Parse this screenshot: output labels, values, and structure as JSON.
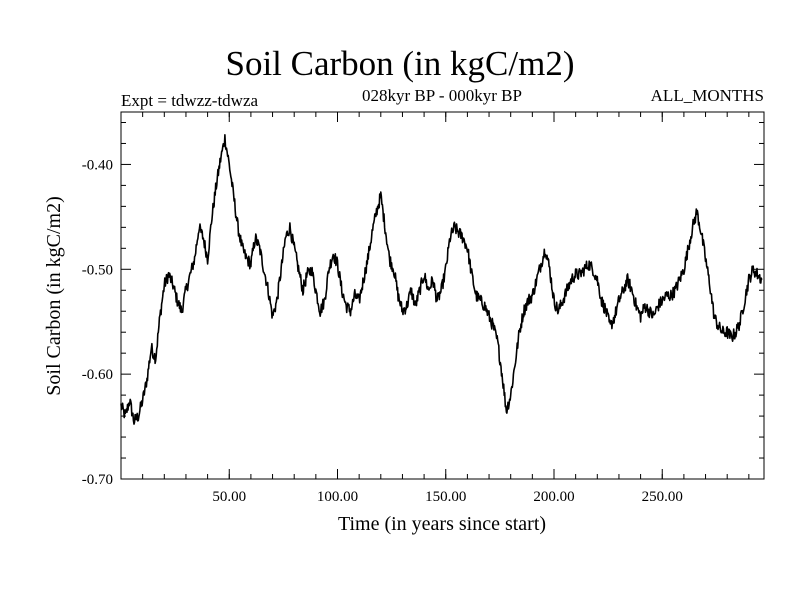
{
  "header": {
    "title": "Soil Carbon (in kgC/m2)",
    "experiment": "Expt = tdwzz-tdwza",
    "period": "028kyr BP - 000kyr BP",
    "months": "ALL_MONTHS"
  },
  "chart_data": {
    "type": "line",
    "title": "Soil Carbon (in kgC/m2)",
    "xlabel": "Time (in years since start)",
    "ylabel": "Soil Carbon (in kgC/m2)",
    "xlim": [
      0,
      297
    ],
    "ylim": [
      -0.7,
      -0.35
    ],
    "x_ticks": [
      50,
      100,
      150,
      200,
      250
    ],
    "x_tick_labels": [
      "50.00",
      "100.00",
      "150.00",
      "200.00",
      "250.00"
    ],
    "y_ticks": [
      -0.7,
      -0.6,
      -0.5,
      -0.4
    ],
    "y_tick_labels": [
      "-0.70",
      "-0.60",
      "-0.50",
      "-0.40"
    ],
    "grid": false,
    "series": [
      {
        "color": "#000000",
        "x": [
          0,
          2,
          4,
          6,
          8,
          10,
          12,
          14,
          16,
          18,
          20,
          22,
          24,
          26,
          28,
          30,
          32,
          34,
          36,
          38,
          40,
          42,
          44,
          46,
          48,
          50,
          52,
          54,
          56,
          58,
          60,
          62,
          64,
          66,
          68,
          70,
          72,
          74,
          76,
          78,
          80,
          82,
          84,
          86,
          88,
          90,
          92,
          94,
          96,
          98,
          100,
          102,
          104,
          106,
          108,
          110,
          112,
          114,
          116,
          118,
          120,
          122,
          124,
          126,
          128,
          130,
          132,
          134,
          136,
          138,
          140,
          142,
          144,
          146,
          148,
          150,
          152,
          154,
          156,
          158,
          160,
          162,
          164,
          166,
          168,
          170,
          172,
          174,
          176,
          178,
          180,
          182,
          184,
          186,
          188,
          190,
          192,
          194,
          196,
          198,
          200,
          202,
          204,
          206,
          208,
          210,
          212,
          214,
          216,
          218,
          220,
          222,
          224,
          226,
          228,
          230,
          232,
          234,
          236,
          238,
          240,
          242,
          244,
          246,
          248,
          250,
          252,
          254,
          256,
          258,
          260,
          262,
          264,
          266,
          268,
          270,
          272,
          274,
          276,
          278,
          280,
          282,
          284,
          286,
          288,
          290,
          292,
          294,
          296
        ],
        "values": [
          -0.63,
          -0.64,
          -0.625,
          -0.645,
          -0.64,
          -0.625,
          -0.605,
          -0.575,
          -0.585,
          -0.545,
          -0.515,
          -0.505,
          -0.515,
          -0.53,
          -0.54,
          -0.52,
          -0.505,
          -0.49,
          -0.46,
          -0.47,
          -0.49,
          -0.45,
          -0.42,
          -0.395,
          -0.375,
          -0.4,
          -0.43,
          -0.46,
          -0.48,
          -0.49,
          -0.495,
          -0.47,
          -0.48,
          -0.5,
          -0.52,
          -0.545,
          -0.53,
          -0.5,
          -0.47,
          -0.46,
          -0.48,
          -0.5,
          -0.52,
          -0.505,
          -0.5,
          -0.52,
          -0.54,
          -0.53,
          -0.5,
          -0.485,
          -0.495,
          -0.52,
          -0.535,
          -0.54,
          -0.525,
          -0.53,
          -0.51,
          -0.49,
          -0.465,
          -0.445,
          -0.43,
          -0.46,
          -0.49,
          -0.5,
          -0.525,
          -0.54,
          -0.535,
          -0.52,
          -0.535,
          -0.52,
          -0.505,
          -0.52,
          -0.51,
          -0.53,
          -0.52,
          -0.5,
          -0.47,
          -0.46,
          -0.465,
          -0.47,
          -0.48,
          -0.505,
          -0.525,
          -0.53,
          -0.535,
          -0.545,
          -0.555,
          -0.57,
          -0.6,
          -0.635,
          -0.62,
          -0.59,
          -0.56,
          -0.54,
          -0.53,
          -0.525,
          -0.51,
          -0.495,
          -0.48,
          -0.5,
          -0.53,
          -0.54,
          -0.53,
          -0.52,
          -0.51,
          -0.505,
          -0.505,
          -0.5,
          -0.495,
          -0.5,
          -0.51,
          -0.53,
          -0.54,
          -0.555,
          -0.545,
          -0.53,
          -0.52,
          -0.51,
          -0.52,
          -0.535,
          -0.545,
          -0.535,
          -0.54,
          -0.545,
          -0.535,
          -0.53,
          -0.525,
          -0.525,
          -0.52,
          -0.51,
          -0.5,
          -0.48,
          -0.46,
          -0.445,
          -0.465,
          -0.49,
          -0.515,
          -0.545,
          -0.555,
          -0.56,
          -0.56,
          -0.565,
          -0.56,
          -0.55,
          -0.53,
          -0.51,
          -0.5,
          -0.505,
          -0.51
        ]
      }
    ]
  }
}
